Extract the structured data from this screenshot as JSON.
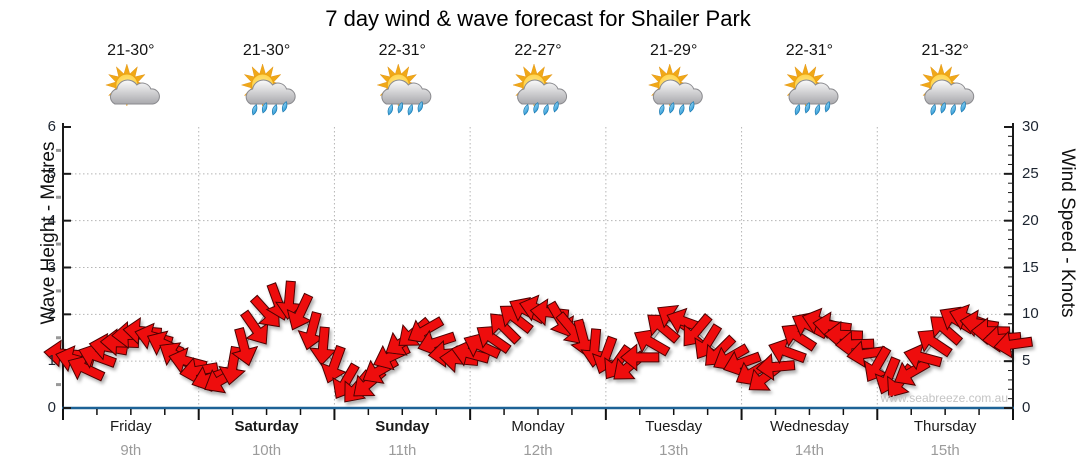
{
  "title": "7 day wind & wave forecast for Shailer Park",
  "watermark": "www.seabreeze.com.au",
  "colors": {
    "arrow_fill": "#ee1111",
    "arrow_outline": "#4d0000",
    "bottom_axis": "#1d6296",
    "axis_line": "#1a1a1a",
    "gridline": "#b5b5b5",
    "wind_line": "#9a9a9a",
    "minor_tick_gray": "#999999",
    "sun_core": "#ffd34d",
    "sun_ray": "#f0a818",
    "cloud_light": "#fbfbfb",
    "cloud_dark": "#a9a9ad",
    "cloud_edge": "#8a8a8e",
    "drop_light": "#9fdcf8",
    "drop_dark": "#1e8fd0"
  },
  "chart_data": {
    "type": "line",
    "title": "7 day wind & wave forecast for Shailer Park",
    "left_axis": {
      "label": "Wave Height - Metres",
      "min": 0,
      "max": 6,
      "major_ticks": [
        0,
        1,
        2,
        3,
        4,
        5,
        6
      ],
      "minor_ticks": [
        0.5,
        1.5,
        2.5,
        3.5,
        4.5,
        5.5
      ],
      "gridlines": [
        1,
        2,
        3,
        4,
        5
      ]
    },
    "right_axis": {
      "label": "Wind Speed - Knots",
      "min": 0,
      "max": 30,
      "major_ticks": [
        0,
        5,
        10,
        15,
        20,
        25,
        30
      ],
      "minor_tick_step": 1
    },
    "days": [
      {
        "name": "Friday",
        "date": "9th",
        "temp": "21-30°",
        "icon": "sun-cloud",
        "weekend": false
      },
      {
        "name": "Saturday",
        "date": "10th",
        "temp": "21-30°",
        "icon": "sun-cloud-rain",
        "weekend": true
      },
      {
        "name": "Sunday",
        "date": "11th",
        "temp": "22-31°",
        "icon": "sun-cloud-rain",
        "weekend": true
      },
      {
        "name": "Monday",
        "date": "12th",
        "temp": "22-27°",
        "icon": "sun-cloud-rain",
        "weekend": false
      },
      {
        "name": "Tuesday",
        "date": "13th",
        "temp": "21-29°",
        "icon": "sun-cloud-rain",
        "weekend": false
      },
      {
        "name": "Wednesday",
        "date": "14th",
        "temp": "22-31°",
        "icon": "sun-cloud-rain",
        "weekend": false
      },
      {
        "name": "Thursday",
        "date": "15th",
        "temp": "21-32°",
        "icon": "sun-cloud-rain",
        "weekend": false
      }
    ],
    "wind": {
      "points_per_day": 12,
      "knots": [
        5.8,
        5.2,
        4.2,
        5.5,
        6.5,
        7.0,
        7.8,
        8.2,
        7.6,
        6.8,
        5.6,
        5.0,
        4.0,
        3.2,
        3.0,
        4.5,
        6.5,
        8.5,
        10.2,
        11.3,
        11.5,
        10.2,
        8.2,
        6.6,
        4.6,
        2.8,
        2.2,
        2.6,
        4.0,
        5.5,
        7.0,
        8.0,
        8.3,
        7.0,
        5.8,
        5.2,
        5.8,
        6.6,
        7.4,
        8.6,
        9.6,
        10.4,
        10.6,
        10.2,
        9.4,
        8.4,
        7.4,
        6.4,
        5.6,
        4.8,
        4.4,
        5.4,
        7.0,
        8.6,
        9.6,
        9.2,
        8.2,
        7.0,
        6.0,
        5.4,
        4.8,
        3.8,
        3.2,
        4.4,
        6.0,
        7.6,
        8.8,
        9.2,
        8.8,
        7.8,
        6.8,
        5.8,
        4.6,
        3.4,
        2.8,
        3.8,
        5.4,
        7.0,
        8.4,
        9.4,
        9.6,
        9.0,
        8.2,
        7.4,
        6.8
      ],
      "dirs_deg": [
        185,
        195,
        205,
        200,
        190,
        182,
        178,
        185,
        195,
        205,
        212,
        195,
        170,
        160,
        150,
        100,
        75,
        55,
        48,
        70,
        95,
        115,
        105,
        95,
        110,
        120,
        130,
        140,
        150,
        155,
        148,
        140,
        150,
        162,
        175,
        185,
        195,
        205,
        215,
        225,
        218,
        208,
        196,
        186,
        60,
        50,
        75,
        95,
        110,
        125,
        140,
        180,
        210,
        220,
        213,
        200,
        130,
        122,
        135,
        150,
        160,
        150,
        142,
        175,
        200,
        213,
        208,
        197,
        188,
        182,
        178,
        172,
        120,
        112,
        126,
        150,
        195,
        214,
        221,
        211,
        199,
        189,
        181,
        175,
        172
      ]
    }
  }
}
